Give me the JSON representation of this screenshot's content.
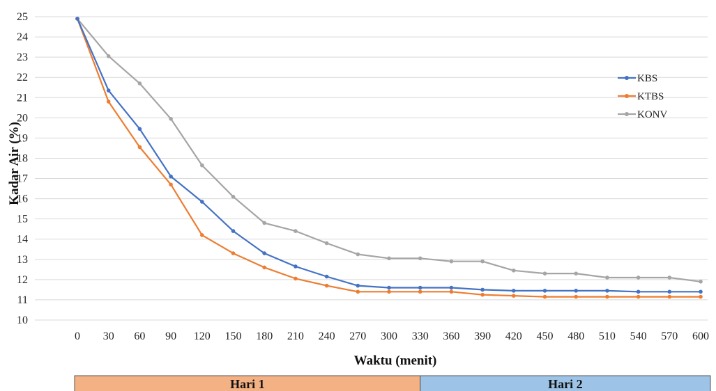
{
  "chart_data": {
    "type": "line",
    "title": "",
    "xlabel": "Waktu (menit)",
    "ylabel": "Kadar Air (%)",
    "x": [
      0,
      30,
      60,
      90,
      120,
      150,
      180,
      210,
      240,
      270,
      300,
      330,
      360,
      390,
      420,
      450,
      480,
      510,
      540,
      570,
      600
    ],
    "ylim": [
      10,
      25
    ],
    "yticks": [
      10,
      11,
      12,
      13,
      14,
      15,
      16,
      17,
      18,
      19,
      20,
      21,
      22,
      23,
      24,
      25
    ],
    "grid": true,
    "legend_position": "right",
    "series": [
      {
        "name": "KBS",
        "color": "#4472C4",
        "values": [
          24.9,
          21.35,
          19.45,
          17.1,
          15.85,
          14.4,
          13.3,
          12.65,
          12.15,
          11.7,
          11.6,
          11.6,
          11.6,
          11.5,
          11.45,
          11.45,
          11.45,
          11.45,
          11.4,
          11.4,
          11.4
        ]
      },
      {
        "name": "KTBS",
        "color": "#ED7D31",
        "values": [
          24.9,
          20.8,
          18.55,
          16.7,
          14.2,
          13.3,
          12.6,
          12.05,
          11.7,
          11.4,
          11.4,
          11.4,
          11.4,
          11.25,
          11.2,
          11.15,
          11.15,
          11.15,
          11.15,
          11.15,
          11.15
        ]
      },
      {
        "name": "KONV",
        "color": "#A5A5A5",
        "values": [
          24.9,
          23.05,
          21.7,
          19.95,
          17.65,
          16.1,
          14.8,
          14.4,
          13.8,
          13.25,
          13.05,
          13.05,
          12.9,
          12.9,
          12.45,
          12.3,
          12.3,
          12.1,
          12.1,
          12.1,
          11.9
        ]
      }
    ],
    "periods": [
      {
        "label": "Hari 1",
        "from": 0,
        "to": 330,
        "color": "#F4B183"
      },
      {
        "label": "Hari 2",
        "from": 330,
        "to": 600,
        "color": "#9DC3E6"
      }
    ]
  }
}
